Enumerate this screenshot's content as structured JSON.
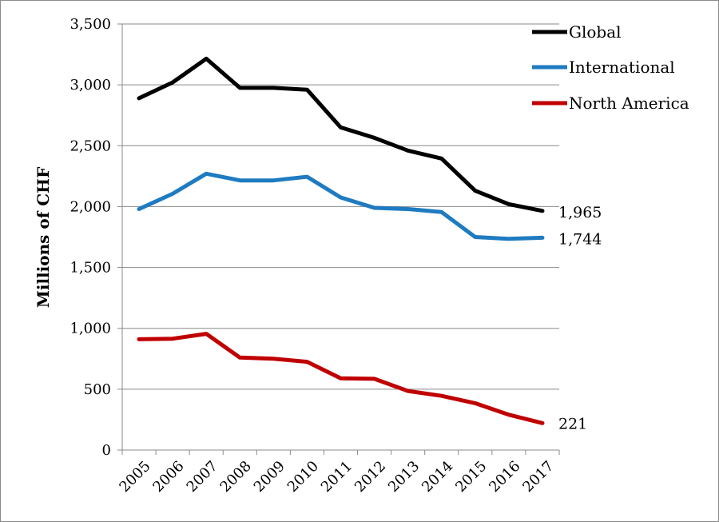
{
  "chart_data": {
    "type": "line",
    "title": "",
    "xlabel": "",
    "ylabel": "Millions of CHF",
    "ylim": [
      0,
      3500
    ],
    "yticks": [
      0,
      500,
      1000,
      1500,
      2000,
      2500,
      3000,
      3500
    ],
    "ytick_labels": [
      "0",
      "500",
      "1,000",
      "1,500",
      "2,000",
      "2,500",
      "3,000",
      "3,500"
    ],
    "categories": [
      "2005",
      "2006",
      "2007",
      "2008",
      "2009",
      "2010",
      "2011",
      "2012",
      "2013",
      "2014",
      "2015",
      "2016",
      "2017"
    ],
    "grid": "horizontal",
    "legend_position": "top-right",
    "series": [
      {
        "name": "Global",
        "color": "#000000",
        "values": [
          2890,
          3020,
          3215,
          2975,
          2975,
          2960,
          2650,
          2565,
          2460,
          2395,
          2130,
          2020,
          1965
        ],
        "end_label": "1,965"
      },
      {
        "name": "International",
        "color": "#1f7bc1",
        "values": [
          1980,
          2105,
          2270,
          2215,
          2215,
          2245,
          2075,
          1990,
          1980,
          1955,
          1750,
          1735,
          1744
        ],
        "end_label": "1,744"
      },
      {
        "name": "North America",
        "color": "#c00000",
        "values": [
          910,
          915,
          955,
          760,
          750,
          725,
          590,
          585,
          485,
          445,
          385,
          290,
          221
        ],
        "end_label": "221"
      }
    ]
  }
}
